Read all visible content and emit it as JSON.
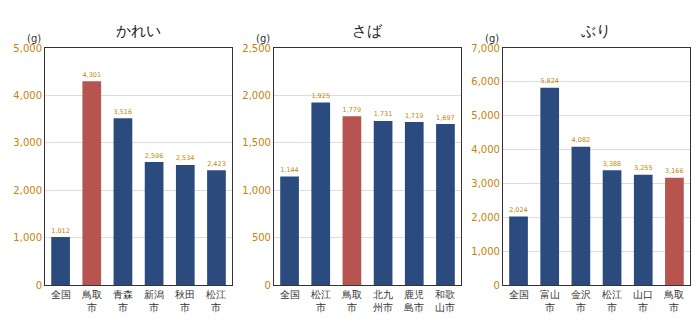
{
  "chart_data": [
    {
      "type": "bar",
      "title": "かれい",
      "ylabel": "(g)",
      "categories": [
        "全国",
        "鳥取市",
        "青森市",
        "新潟市",
        "秋田市",
        "松江市"
      ],
      "values": [
        1012,
        4301,
        3516,
        2596,
        2534,
        2423
      ],
      "value_labels": [
        "1,012",
        "4,301",
        "3,516",
        "2,596",
        "2,534",
        "2,423"
      ],
      "colors": [
        "#2b4b7e",
        "#b85450",
        "#2b4b7e",
        "#2b4b7e",
        "#2b4b7e",
        "#2b4b7e"
      ],
      "ylim": [
        0,
        5000
      ],
      "yticks": [
        0,
        {
          "value": 1000,
          "label": "1,000"
        },
        {
          "value": 2000,
          "label": "2,000"
        },
        {
          "value": 3000,
          "label": "3,000"
        },
        {
          "value": 4000,
          "label": "4,000"
        },
        {
          "value": 5000,
          "label": "5,000"
        }
      ],
      "grid": true,
      "data_labels": true
    },
    {
      "type": "bar",
      "title": "さば",
      "ylabel": "(g)",
      "categories": [
        "全国",
        "松江市",
        "鳥取市",
        "北九州市",
        "鹿児島市",
        "和歌山市"
      ],
      "values": [
        1144,
        1925,
        1779,
        1731,
        1719,
        1697
      ],
      "value_labels": [
        "1,144",
        "1,925",
        "1,779",
        "1,731",
        "1,719",
        "1,697"
      ],
      "colors": [
        "#2b4b7e",
        "#2b4b7e",
        "#b85450",
        "#2b4b7e",
        "#2b4b7e",
        "#2b4b7e"
      ],
      "ylim": [
        0,
        2500
      ],
      "yticks": [
        0,
        500,
        {
          "value": 1000,
          "label": "1,000"
        },
        {
          "value": 1500,
          "label": "1,500"
        },
        {
          "value": 2000,
          "label": "2,000"
        },
        {
          "value": 2500,
          "label": "2,500"
        }
      ],
      "grid": true,
      "data_labels": true
    },
    {
      "type": "bar",
      "title": "ぶり",
      "ylabel": "(g)",
      "categories": [
        "全国",
        "富山市",
        "金沢市",
        "松江市",
        "山口市",
        "鳥取市"
      ],
      "values": [
        2024,
        5824,
        4082,
        3388,
        3255,
        3166
      ],
      "value_labels": [
        "2,024",
        "5,824",
        "4,082",
        "3,388",
        "3,255",
        "3,166"
      ],
      "colors": [
        "#2b4b7e",
        "#2b4b7e",
        "#2b4b7e",
        "#2b4b7e",
        "#2b4b7e",
        "#b85450"
      ],
      "ylim": [
        0,
        7000
      ],
      "yticks": [
        0,
        {
          "value": 1000,
          "label": "1,000"
        },
        {
          "value": 2000,
          "label": "2,000"
        },
        {
          "value": 3000,
          "label": "3,000"
        },
        {
          "value": 4000,
          "label": "4,000"
        },
        {
          "value": 5000,
          "label": "5,000"
        },
        {
          "value": 6000,
          "label": "6,000"
        },
        {
          "value": 7000,
          "label": "7,000"
        }
      ],
      "grid": true,
      "data_labels": true
    }
  ]
}
